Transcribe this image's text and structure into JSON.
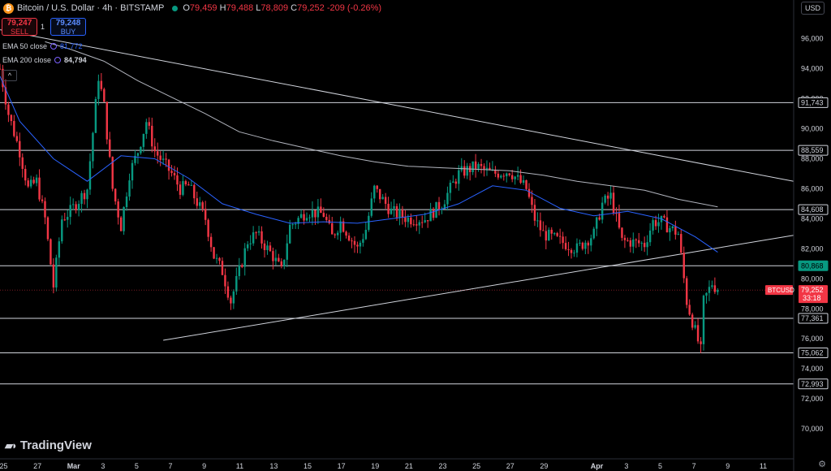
{
  "header": {
    "symbol_title": "Bitcoin / U.S. Dollar · 4h · BITSTAMP",
    "btc_symbol": "₿",
    "ohlc": {
      "o_label": "O",
      "o": "79,459",
      "h_label": "H",
      "h": "79,488",
      "l_label": "L",
      "l": "78,809",
      "c_label": "C",
      "c": "79,252",
      "change": "-209 (-0.26%)"
    },
    "currency": "USD"
  },
  "trade": {
    "sell_price": "79,247",
    "sell_label": "SELL",
    "spread": "1",
    "buy_price": "79,248",
    "buy_label": "BUY"
  },
  "indicators": [
    {
      "label": "EMA 50 close",
      "value": "81,772",
      "color": "#2962ff"
    },
    {
      "label": "EMA 200 close",
      "value": "84,794",
      "color": "#b2b5be"
    }
  ],
  "collapse_icon": "^",
  "brand": {
    "name": "TradingView",
    "icon": "tradingview-logo-icon"
  },
  "settings_icon": "gear-icon",
  "colors": {
    "up": "#089981",
    "down": "#f23645",
    "ema50": "#2962ff",
    "ema200": "#b2b5be",
    "level": "#d1d4dc",
    "bg": "#000000"
  },
  "chart_data": {
    "type": "candlestick",
    "symbol": "BTCUSD",
    "interval": "4h",
    "ylim": [
      68000,
      97500
    ],
    "y_ticks": [
      70000,
      72000,
      74000,
      76000,
      78000,
      80000,
      82000,
      84000,
      86000,
      88000,
      90000,
      92000,
      94000,
      96000
    ],
    "y_tick_labels": [
      "70,000",
      "72,000",
      "74,000",
      "76,000",
      "78,000",
      "80,000",
      "82,000",
      "84,000",
      "86,000",
      "88,000",
      "90,000",
      "92,000",
      "94,000",
      "96,000"
    ],
    "x_range_days": [
      "2025-02-24T20:00",
      "2025-04-12T20:00"
    ],
    "x_ticks": [
      {
        "t": "2025-02-25",
        "label": "25"
      },
      {
        "t": "2025-02-27",
        "label": "27"
      },
      {
        "t": "2025-03-01",
        "label": "Mar"
      },
      {
        "t": "2025-03-03",
        "label": "3"
      },
      {
        "t": "2025-03-05",
        "label": "5"
      },
      {
        "t": "2025-03-07",
        "label": "7"
      },
      {
        "t": "2025-03-09",
        "label": "9"
      },
      {
        "t": "2025-03-11",
        "label": "11"
      },
      {
        "t": "2025-03-13",
        "label": "13"
      },
      {
        "t": "2025-03-15",
        "label": "15"
      },
      {
        "t": "2025-03-17",
        "label": "17"
      },
      {
        "t": "2025-03-19",
        "label": "19"
      },
      {
        "t": "2025-03-21",
        "label": "21"
      },
      {
        "t": "2025-03-23",
        "label": "23"
      },
      {
        "t": "2025-03-25",
        "label": "25"
      },
      {
        "t": "2025-03-27",
        "label": "27"
      },
      {
        "t": "2025-03-29",
        "label": "29"
      },
      {
        "t": "2025-04-01",
        "label": "Apr"
      },
      {
        "t": "2025-04-03",
        "label": "3"
      },
      {
        "t": "2025-04-05",
        "label": "5"
      },
      {
        "t": "2025-04-07",
        "label": "7"
      },
      {
        "t": "2025-04-09",
        "label": "9"
      },
      {
        "t": "2025-04-11",
        "label": "11"
      }
    ],
    "horizontal_levels": [
      91743,
      88559,
      84608,
      80868,
      77361,
      75062,
      72993
    ],
    "level_labels": [
      "91,743",
      "88,559",
      "84,608",
      "80,868",
      "77,361",
      "75,062",
      "72,993"
    ],
    "level_highlight": "80,868",
    "trendlines": [
      {
        "name": "descending",
        "from": {
          "t": "2025-02-24T20:00",
          "y": 96600
        },
        "to": {
          "t": "2025-04-12T20:00",
          "y": 86500
        }
      },
      {
        "name": "ascending",
        "from": {
          "t": "2025-03-06T12:00",
          "y": 75900
        },
        "to": {
          "t": "2025-04-12T20:00",
          "y": 82900
        }
      }
    ],
    "price_label": {
      "symbol": "BTCUSD",
      "price": "79,252",
      "countdown": "33:18",
      "value": 79252
    },
    "close_path_daily": [
      [
        "2025-02-24T20:00",
        94000
      ],
      [
        "2025-02-25T08:00",
        91000
      ],
      [
        "2025-02-26",
        88500
      ],
      [
        "2025-02-26T12:00",
        86000
      ],
      [
        "2025-02-27",
        86500
      ],
      [
        "2025-02-27T12:00",
        84000
      ],
      [
        "2025-02-28",
        79500
      ],
      [
        "2025-02-28T12:00",
        84000
      ],
      [
        "2025-03-01",
        84500
      ],
      [
        "2025-03-02",
        86000
      ],
      [
        "2025-03-02T16:00",
        93500
      ],
      [
        "2025-03-03",
        91500
      ],
      [
        "2025-03-03T12:00",
        86000
      ],
      [
        "2025-03-04",
        83500
      ],
      [
        "2025-03-04T12:00",
        87000
      ],
      [
        "2025-03-05",
        88500
      ],
      [
        "2025-03-05T12:00",
        90500
      ],
      [
        "2025-03-06",
        88500
      ],
      [
        "2025-03-07",
        87000
      ],
      [
        "2025-03-07T12:00",
        86000
      ],
      [
        "2025-03-08",
        86200
      ],
      [
        "2025-03-09",
        84000
      ],
      [
        "2025-03-09T12:00",
        81500
      ],
      [
        "2025-03-10",
        80500
      ],
      [
        "2025-03-10T12:00",
        78500
      ],
      [
        "2025-03-11",
        80500
      ],
      [
        "2025-03-11T12:00",
        82500
      ],
      [
        "2025-03-12",
        83000
      ],
      [
        "2025-03-13",
        81500
      ],
      [
        "2025-03-13T12:00",
        80500
      ],
      [
        "2025-03-14",
        83500
      ],
      [
        "2025-03-15",
        84500
      ],
      [
        "2025-03-16",
        84300
      ],
      [
        "2025-03-16T12:00",
        82800
      ],
      [
        "2025-03-17",
        83800
      ],
      [
        "2025-03-18",
        82000
      ],
      [
        "2025-03-18T12:00",
        83300
      ],
      [
        "2025-03-19",
        86000
      ],
      [
        "2025-03-20",
        84500
      ],
      [
        "2025-03-21",
        84000
      ],
      [
        "2025-03-22",
        84000
      ],
      [
        "2025-03-23",
        85000
      ],
      [
        "2025-03-24",
        87000
      ],
      [
        "2025-03-25",
        87500
      ],
      [
        "2025-03-26",
        87000
      ],
      [
        "2025-03-27",
        87200
      ],
      [
        "2025-03-28",
        86000
      ],
      [
        "2025-03-28T12:00",
        84000
      ],
      [
        "2025-03-29",
        83000
      ],
      [
        "2025-03-30",
        82500
      ],
      [
        "2025-03-31",
        82000
      ],
      [
        "2025-04-01",
        83000
      ],
      [
        "2025-04-01T12:00",
        85000
      ],
      [
        "2025-04-02",
        85500
      ],
      [
        "2025-04-02T16:00",
        82500
      ],
      [
        "2025-04-03",
        82500
      ],
      [
        "2025-04-04",
        82300
      ],
      [
        "2025-04-04T12:00",
        83800
      ],
      [
        "2025-04-05",
        83800
      ],
      [
        "2025-04-06",
        83000
      ],
      [
        "2025-04-06T12:00",
        78500
      ],
      [
        "2025-04-07",
        76500
      ],
      [
        "2025-04-07T08:00",
        75200
      ],
      [
        "2025-04-07T12:00",
        78500
      ],
      [
        "2025-04-08",
        79700
      ],
      [
        "2025-04-08T08:00",
        79252
      ]
    ],
    "ema50": [
      [
        "2025-02-24T20:00",
        93500
      ],
      [
        "2025-02-26",
        90500
      ],
      [
        "2025-02-28",
        88000
      ],
      [
        "2025-03-02",
        86500
      ],
      [
        "2025-03-04",
        88200
      ],
      [
        "2025-03-06",
        88000
      ],
      [
        "2025-03-08",
        86700
      ],
      [
        "2025-03-10",
        85000
      ],
      [
        "2025-03-12",
        84300
      ],
      [
        "2025-03-14",
        83700
      ],
      [
        "2025-03-16",
        83800
      ],
      [
        "2025-03-18",
        83700
      ],
      [
        "2025-03-20",
        84000
      ],
      [
        "2025-03-22",
        84300
      ],
      [
        "2025-03-24",
        85000
      ],
      [
        "2025-03-26",
        86200
      ],
      [
        "2025-03-28",
        85900
      ],
      [
        "2025-03-30",
        84700
      ],
      [
        "2025-04-01",
        84200
      ],
      [
        "2025-04-03",
        84500
      ],
      [
        "2025-04-05",
        84000
      ],
      [
        "2025-04-07",
        82800
      ],
      [
        "2025-04-08T08:00",
        81772
      ]
    ],
    "ema200": [
      [
        "2025-02-27T12:00",
        95800
      ],
      [
        "2025-03-01",
        95300
      ],
      [
        "2025-03-03",
        94500
      ],
      [
        "2025-03-05",
        93200
      ],
      [
        "2025-03-07",
        92100
      ],
      [
        "2025-03-09",
        91000
      ],
      [
        "2025-03-11",
        89800
      ],
      [
        "2025-03-13",
        89200
      ],
      [
        "2025-03-15",
        88700
      ],
      [
        "2025-03-17",
        88200
      ],
      [
        "2025-03-19",
        87800
      ],
      [
        "2025-03-21",
        87500
      ],
      [
        "2025-03-23",
        87400
      ],
      [
        "2025-03-25",
        87300
      ],
      [
        "2025-03-27",
        87200
      ],
      [
        "2025-03-29",
        86900
      ],
      [
        "2025-03-31",
        86500
      ],
      [
        "2025-04-02",
        86200
      ],
      [
        "2025-04-04",
        85900
      ],
      [
        "2025-04-06",
        85300
      ],
      [
        "2025-04-08T08:00",
        84794
      ]
    ]
  }
}
